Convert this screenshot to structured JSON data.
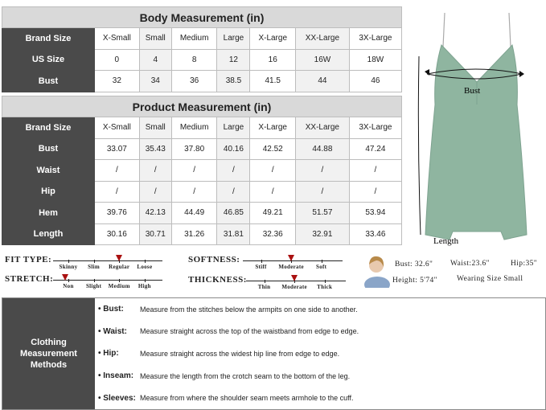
{
  "body_table": {
    "title": "Body Measurement (in)",
    "sizes": [
      "X-Small",
      "Small",
      "Medium",
      "Large",
      "X-Large",
      "XX-Large",
      "3X-Large"
    ],
    "header_label": "Brand Size",
    "rows": [
      {
        "label": "US Size",
        "values": [
          "0",
          "4",
          "8",
          "12",
          "16",
          "16W",
          "18W"
        ]
      },
      {
        "label": "Bust",
        "values": [
          "32",
          "34",
          "36",
          "38.5",
          "41.5",
          "44",
          "46"
        ]
      }
    ]
  },
  "product_table": {
    "title": "Product Measurement (in)",
    "header_label": "Brand Size",
    "sizes": [
      "X-Small",
      "Small",
      "Medium",
      "Large",
      "X-Large",
      "XX-Large",
      "3X-Large"
    ],
    "rows": [
      {
        "label": "Bust",
        "values": [
          "33.07",
          "35.43",
          "37.80",
          "40.16",
          "42.52",
          "44.88",
          "47.24"
        ]
      },
      {
        "label": "Waist",
        "values": [
          "/",
          "/",
          "/",
          "/",
          "/",
          "/",
          "/"
        ]
      },
      {
        "label": "Hip",
        "values": [
          "/",
          "/",
          "/",
          "/",
          "/",
          "/",
          "/"
        ]
      },
      {
        "label": "Hem",
        "values": [
          "39.76",
          "42.13",
          "44.49",
          "46.85",
          "49.21",
          "51.57",
          "53.94"
        ]
      },
      {
        "label": "Length",
        "values": [
          "30.16",
          "30.71",
          "31.26",
          "31.81",
          "32.36",
          "32.91",
          "33.46"
        ]
      }
    ]
  },
  "diagram": {
    "bust_label": "Bust",
    "length_label": "Length",
    "dress_color": "#8fb5a0"
  },
  "scales": [
    {
      "name": "FIT TYPE:",
      "options": [
        "Skinny",
        "Slim",
        "Regular",
        "Loose"
      ],
      "selected": "Regular"
    },
    {
      "name": "STRETCH:",
      "options": [
        "Non",
        "Slight",
        "Medium",
        "High"
      ],
      "selected": "Non"
    },
    {
      "name": "SOFTNESS:",
      "options": [
        "Stiff",
        "Moderate",
        "Soft"
      ],
      "selected": "Moderate"
    },
    {
      "name": "THICKNESS:",
      "options": [
        "Thin",
        "Moderate",
        "Thick"
      ],
      "selected": "Moderate"
    }
  ],
  "model": {
    "bust": "Bust: 32.6\"",
    "waist": "Waist:23.6\"",
    "hip": "Hip:35\"",
    "height": "Height: 5'74\"",
    "wearing": "Wearing Size Small"
  },
  "methods": {
    "label": "Clothing Measurement Methods",
    "items": [
      {
        "key": "Bust:",
        "text": "Measure from the stitches below the armpits on one side to another."
      },
      {
        "key": "Waist:",
        "text": "Measure straight across the top of the waistband from edge to edge."
      },
      {
        "key": "Hip:",
        "text": "Measure straight across the widest hip line from edge to edge."
      },
      {
        "key": "Inseam:",
        "text": "Measure the length from the crotch seam to the bottom of the leg."
      },
      {
        "key": "Sleeves:",
        "text": "Measure from where the shoulder seam meets armhole to the cuff."
      }
    ]
  }
}
